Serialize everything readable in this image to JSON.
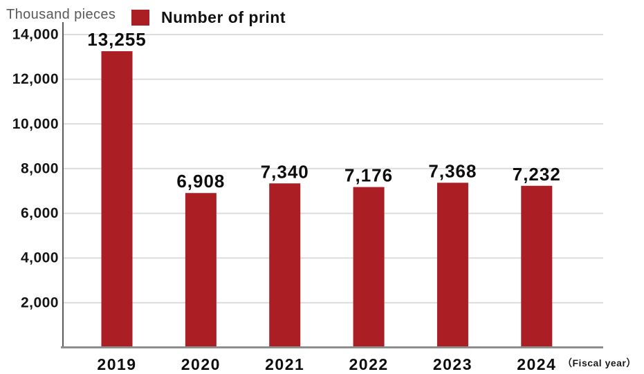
{
  "unit_label": "Thousand pieces",
  "fiscal_year_label": "（Fiscal year）",
  "legend": {
    "label": "Number of print",
    "color": "#aa1e24"
  },
  "colors": {
    "bar": "#aa1e24",
    "grid_line": "#dcdcdc",
    "axis_line": "#5a5a5a",
    "baseline": "#8d8d8d",
    "text": "#0d0d0d",
    "unit_text": "#595959"
  },
  "chart_data": {
    "type": "bar",
    "title": "Number of print",
    "categories": [
      "2019",
      "2020",
      "2021",
      "2022",
      "2023",
      "2024"
    ],
    "values": [
      13255,
      6908,
      7340,
      7176,
      7368,
      7232
    ],
    "value_labels": [
      "13,255",
      "6,908",
      "7,340",
      "7,176",
      "7,368",
      "7,232"
    ],
    "xlabel": "Fiscal year",
    "ylabel": "Thousand pieces",
    "ylim": [
      0,
      14000
    ],
    "ytick_interval": 2000,
    "ytick_labels": [
      "2,000",
      "4,000",
      "6,000",
      "8,000",
      "10,000",
      "12,000",
      "14,000"
    ],
    "grid": true,
    "legend_position": "top-left",
    "bar_color": "#aa1e24"
  }
}
